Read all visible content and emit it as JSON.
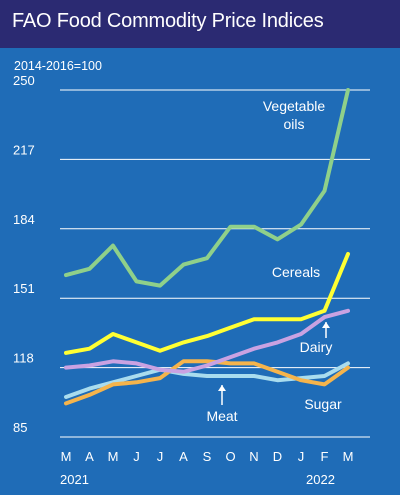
{
  "header": {
    "title": "FAO Food Commodity Price Indices",
    "base_note": "2014-2016=100"
  },
  "colors": {
    "background": "#1f6cb7",
    "header": "#2b2a72",
    "grid": "#ffffff",
    "vegetable_oils": "#8fd08a",
    "cereals": "#ffff33",
    "dairy": "#c9a2e2",
    "meat": "#a9dcee",
    "sugar": "#f5b44c"
  },
  "chart_data": {
    "type": "line",
    "title": "FAO Food Commodity Price Indices",
    "subtitle": "2014-2016=100",
    "x": [
      "M",
      "A",
      "M",
      "J",
      "J",
      "A",
      "S",
      "O",
      "N",
      "D",
      "J",
      "F",
      "M"
    ],
    "year_labels": [
      {
        "year": "2021",
        "under": "M"
      },
      {
        "year": "2022",
        "under": "F"
      }
    ],
    "ylim": [
      85,
      250
    ],
    "yticks": [
      85,
      118,
      151,
      184,
      217,
      250
    ],
    "grid": "horizontal",
    "series": [
      {
        "name": "Vegetable oils",
        "key": "vegetable_oils",
        "values": [
          162,
          165,
          176,
          159,
          157,
          167,
          170,
          185,
          185,
          179,
          186,
          202,
          250
        ]
      },
      {
        "name": "Cereals",
        "key": "cereals",
        "values": [
          125,
          127,
          134,
          130,
          126,
          130,
          133,
          137,
          141,
          141,
          141,
          145,
          172
        ]
      },
      {
        "name": "Dairy",
        "key": "dairy",
        "values": [
          118,
          119,
          121,
          120,
          117,
          116,
          119,
          123,
          127,
          130,
          134,
          142,
          145
        ]
      },
      {
        "name": "Meat",
        "key": "meat",
        "values": [
          104,
          108,
          111,
          114,
          117,
          115,
          114,
          114,
          114,
          112,
          113,
          114,
          120
        ]
      },
      {
        "name": "Sugar",
        "key": "sugar",
        "values": [
          101,
          105,
          110,
          111,
          113,
          121,
          121,
          120,
          120,
          116,
          112,
          110,
          118
        ]
      }
    ],
    "annotations": [
      {
        "text": "Vegetable",
        "series": "vegetable_oils"
      },
      {
        "text": "oils",
        "series": "vegetable_oils"
      },
      {
        "text": "Cereals",
        "series": "cereals"
      },
      {
        "text": "Dairy",
        "series": "dairy"
      },
      {
        "text": "Meat",
        "series": "meat"
      },
      {
        "text": "Sugar",
        "series": "sugar"
      }
    ]
  }
}
